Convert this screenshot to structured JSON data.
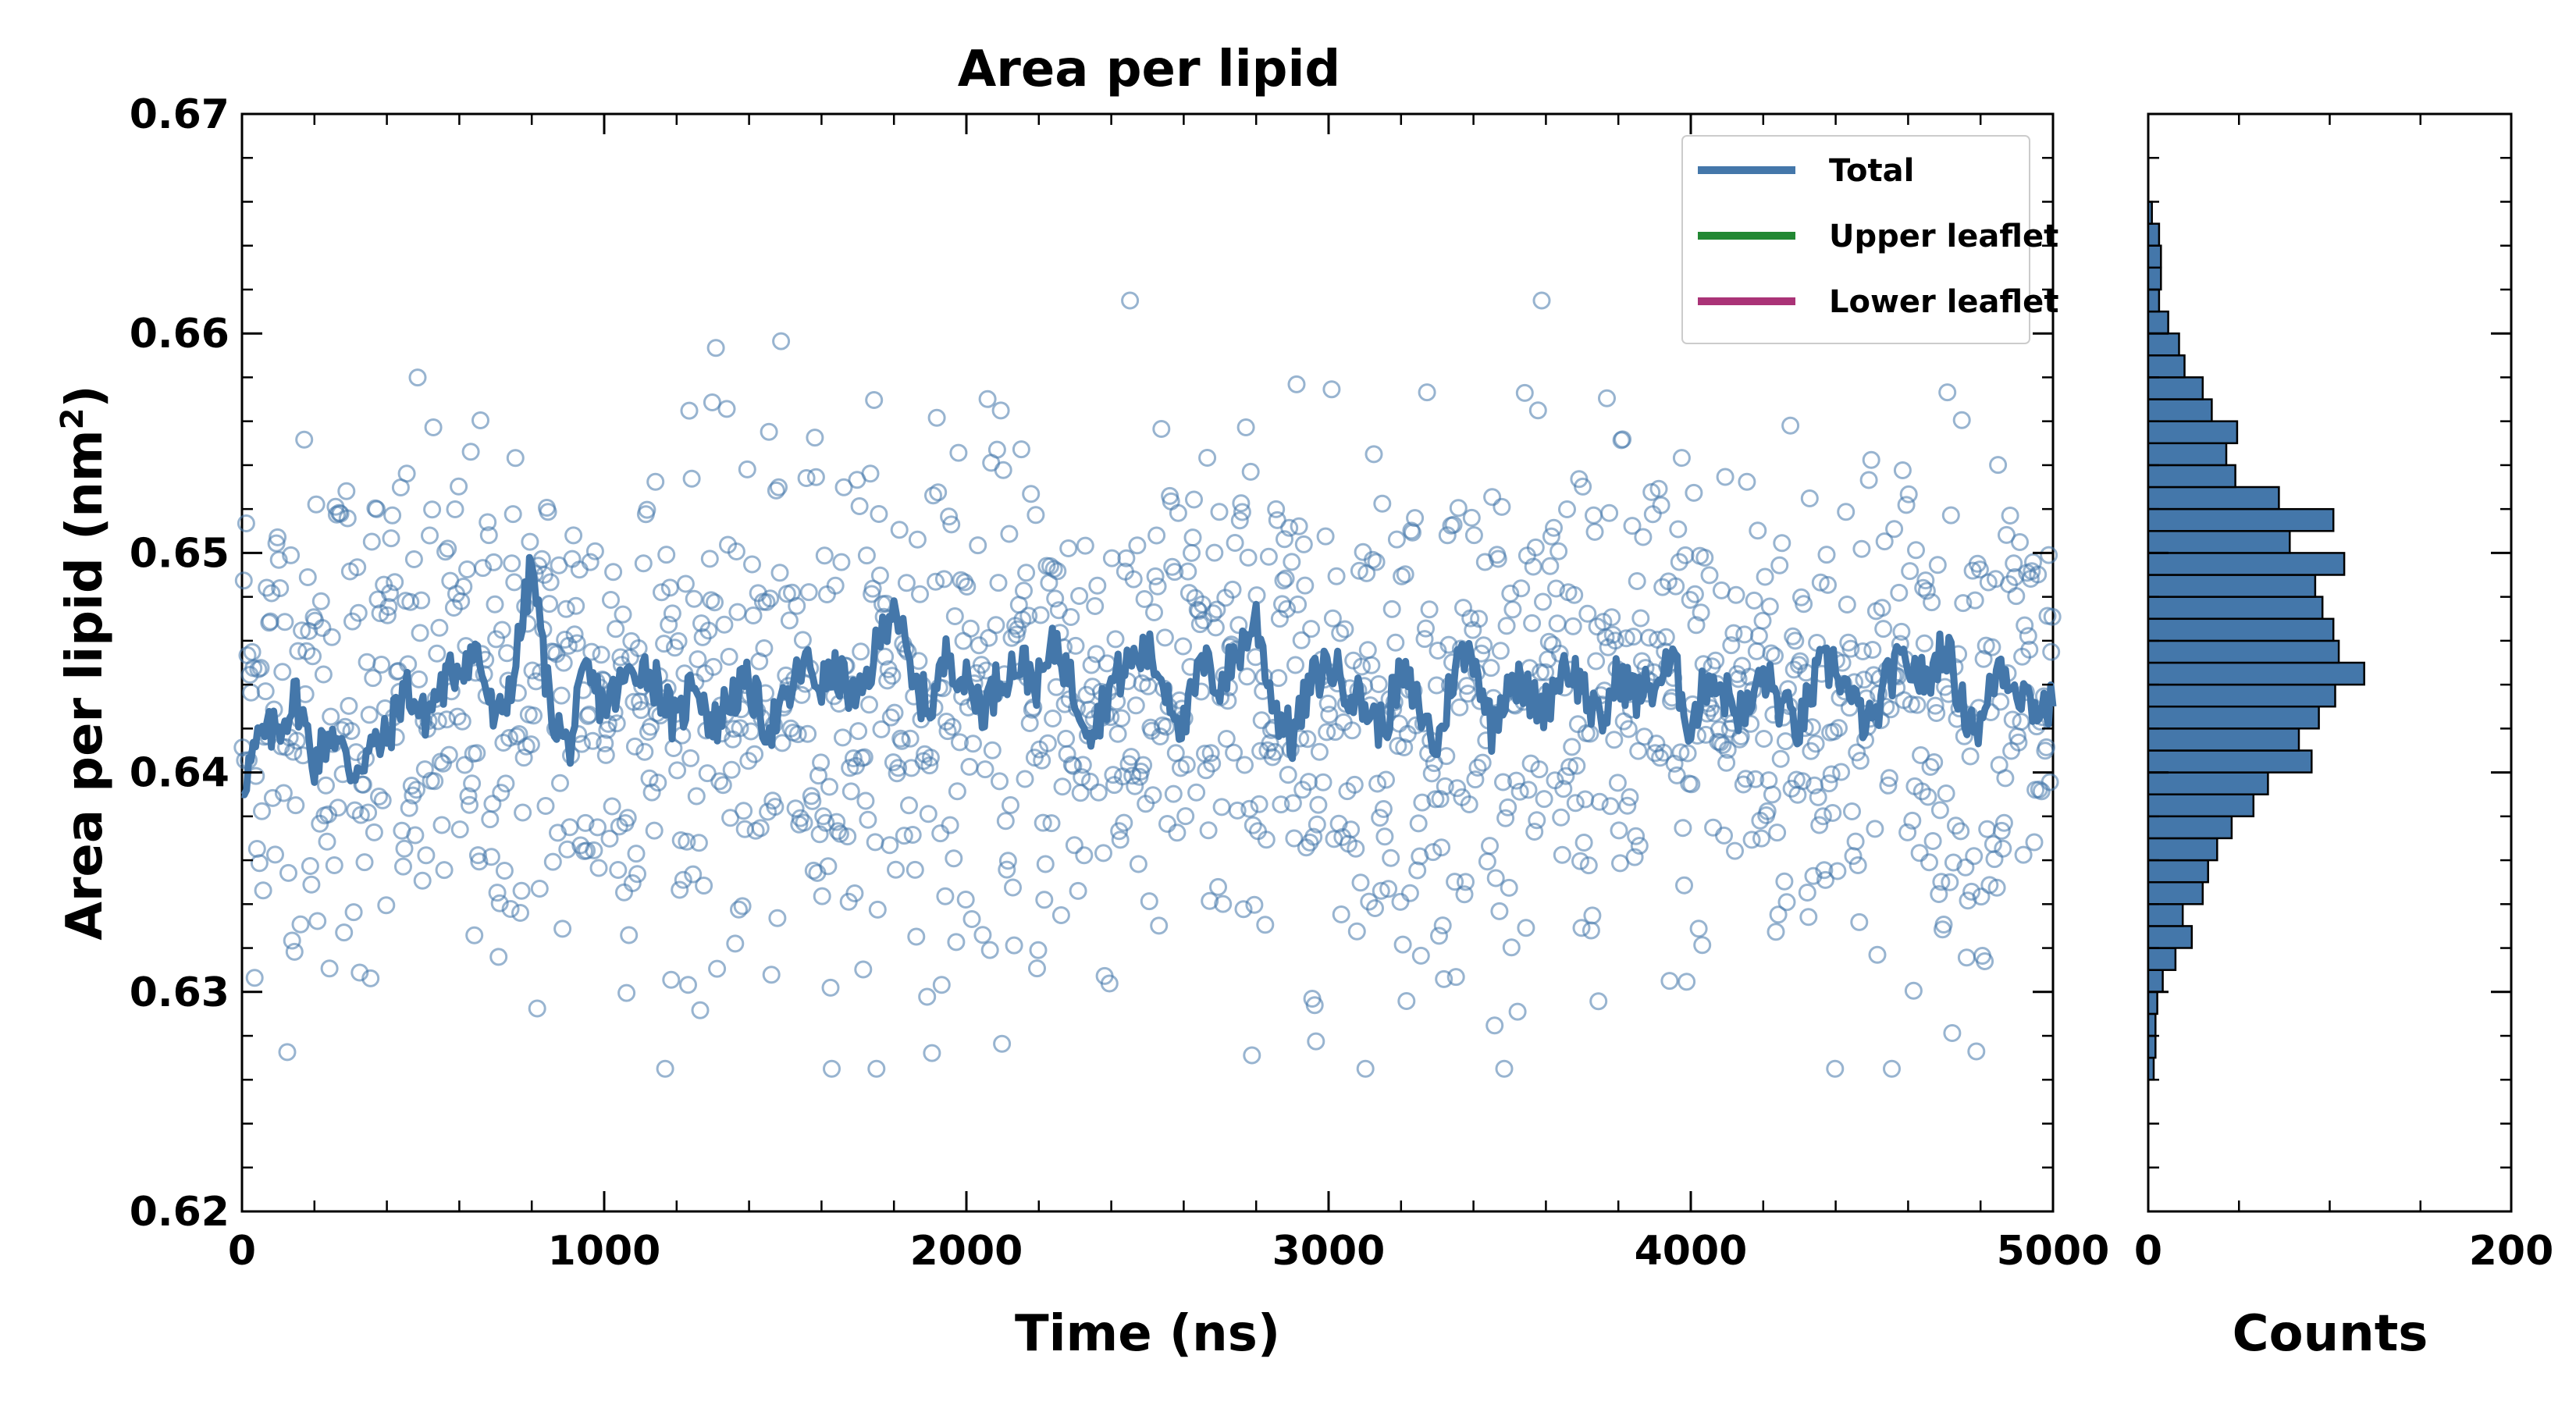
{
  "chart_data": [
    {
      "type": "scatter+line",
      "title": "Area per lipid",
      "xlabel": "Time (ns)",
      "ylabel": "Area per lipid (nm",
      "ylabel_sup": "2",
      "ylabel_end": ")",
      "xlim": [
        0,
        5000
      ],
      "ylim": [
        0.62,
        0.67
      ],
      "xticks": [
        0,
        1000,
        2000,
        3000,
        4000,
        5000
      ],
      "xtick_labels": [
        "0",
        "1000",
        "2000",
        "3000",
        "4000",
        "5000"
      ],
      "yticks": [
        0.62,
        0.63,
        0.64,
        0.65,
        0.66,
        0.67
      ],
      "ytick_labels": [
        "0.62",
        "0.63",
        "0.64",
        "0.65",
        "0.66",
        "0.67"
      ],
      "grid": false,
      "legend_position": "top-right",
      "series": [
        {
          "name": "Total",
          "color": "#4477aa",
          "style": "line (running average) over open-circle scatter",
          "line_samples": {
            "x": [
              0,
              50,
              100,
              150,
              200,
              250,
              300,
              350,
              400,
              450,
              500,
              550,
              600,
              650,
              700,
              750,
              800,
              850,
              900,
              950,
              1000,
              1050,
              1100,
              1150,
              1200,
              1250,
              1300,
              1350,
              1400,
              1450,
              1500,
              1550,
              1600,
              1650,
              1700,
              1750,
              1800,
              1850,
              1900,
              1950,
              2000,
              2050,
              2100,
              2150,
              2200,
              2250,
              2300,
              2350,
              2400,
              2450,
              2500,
              2550,
              2600,
              2650,
              2700,
              2750,
              2800,
              2850,
              2900,
              2950,
              3000,
              3050,
              3100,
              3150,
              3200,
              3250,
              3300,
              3350,
              3400,
              3450,
              3500,
              3550,
              3600,
              3650,
              3700,
              3750,
              3800,
              3850,
              3900,
              3950,
              4000,
              4050,
              4100,
              4150,
              4200,
              4250,
              4300,
              4350,
              4400,
              4450,
              4500,
              4550,
              4600,
              4650,
              4700,
              4750,
              4800,
              4850,
              4900,
              4950,
              5000
            ],
            "y": [
              0.6395,
              0.6415,
              0.642,
              0.6435,
              0.6405,
              0.642,
              0.64,
              0.641,
              0.6415,
              0.644,
              0.6425,
              0.6438,
              0.645,
              0.6455,
              0.642,
              0.6445,
              0.6495,
              0.643,
              0.641,
              0.6445,
              0.643,
              0.644,
              0.645,
              0.644,
              0.642,
              0.6445,
              0.642,
              0.6435,
              0.644,
              0.642,
              0.643,
              0.645,
              0.644,
              0.6445,
              0.643,
              0.6455,
              0.648,
              0.644,
              0.643,
              0.6455,
              0.644,
              0.643,
              0.6445,
              0.645,
              0.644,
              0.646,
              0.6435,
              0.642,
              0.644,
              0.645,
              0.6455,
              0.644,
              0.642,
              0.645,
              0.644,
              0.6455,
              0.647,
              0.643,
              0.6415,
              0.644,
              0.645,
              0.644,
              0.643,
              0.642,
              0.6445,
              0.643,
              0.641,
              0.645,
              0.6455,
              0.642,
              0.6445,
              0.6435,
              0.643,
              0.645,
              0.644,
              0.642,
              0.6445,
              0.6435,
              0.644,
              0.645,
              0.642,
              0.6445,
              0.6435,
              0.6425,
              0.6445,
              0.643,
              0.642,
              0.6445,
              0.645,
              0.643,
              0.642,
              0.6445,
              0.645,
              0.644,
              0.646,
              0.643,
              0.642,
              0.645,
              0.644,
              0.643,
              0.643
            ]
          }
        },
        {
          "name": "Upper leaflet",
          "color": "#228833"
        },
        {
          "name": "Lower leaflet",
          "color": "#aa3377"
        }
      ],
      "scatter_summary": {
        "points_per_1000ns": 300,
        "mean": 0.643,
        "sd": 0.006,
        "min": 0.6265,
        "max": 0.6615
      }
    },
    {
      "type": "horizontal-histogram",
      "xlabel": "Counts",
      "xlim": [
        0,
        200
      ],
      "xticks": [
        0,
        200
      ],
      "xtick_labels": [
        "0",
        "200"
      ],
      "ylim": [
        0.62,
        0.67
      ],
      "bin_width": 0.001,
      "bins": [
        {
          "lo": 0.626,
          "count": 3
        },
        {
          "lo": 0.627,
          "count": 4
        },
        {
          "lo": 0.628,
          "count": 4
        },
        {
          "lo": 0.629,
          "count": 5
        },
        {
          "lo": 0.63,
          "count": 8
        },
        {
          "lo": 0.631,
          "count": 15
        },
        {
          "lo": 0.632,
          "count": 24
        },
        {
          "lo": 0.633,
          "count": 19
        },
        {
          "lo": 0.634,
          "count": 30
        },
        {
          "lo": 0.635,
          "count": 33
        },
        {
          "lo": 0.636,
          "count": 38
        },
        {
          "lo": 0.637,
          "count": 46
        },
        {
          "lo": 0.638,
          "count": 58
        },
        {
          "lo": 0.639,
          "count": 66
        },
        {
          "lo": 0.64,
          "count": 90
        },
        {
          "lo": 0.641,
          "count": 83
        },
        {
          "lo": 0.642,
          "count": 94
        },
        {
          "lo": 0.643,
          "count": 103
        },
        {
          "lo": 0.644,
          "count": 119
        },
        {
          "lo": 0.645,
          "count": 105
        },
        {
          "lo": 0.646,
          "count": 102
        },
        {
          "lo": 0.647,
          "count": 96
        },
        {
          "lo": 0.648,
          "count": 92
        },
        {
          "lo": 0.649,
          "count": 108
        },
        {
          "lo": 0.65,
          "count": 78
        },
        {
          "lo": 0.651,
          "count": 102
        },
        {
          "lo": 0.652,
          "count": 72
        },
        {
          "lo": 0.653,
          "count": 48
        },
        {
          "lo": 0.654,
          "count": 43
        },
        {
          "lo": 0.655,
          "count": 49
        },
        {
          "lo": 0.656,
          "count": 35
        },
        {
          "lo": 0.657,
          "count": 30
        },
        {
          "lo": 0.658,
          "count": 20
        },
        {
          "lo": 0.659,
          "count": 17
        },
        {
          "lo": 0.66,
          "count": 11
        },
        {
          "lo": 0.661,
          "count": 6
        },
        {
          "lo": 0.662,
          "count": 7
        },
        {
          "lo": 0.663,
          "count": 7
        },
        {
          "lo": 0.664,
          "count": 6
        },
        {
          "lo": 0.665,
          "count": 2
        }
      ]
    }
  ]
}
